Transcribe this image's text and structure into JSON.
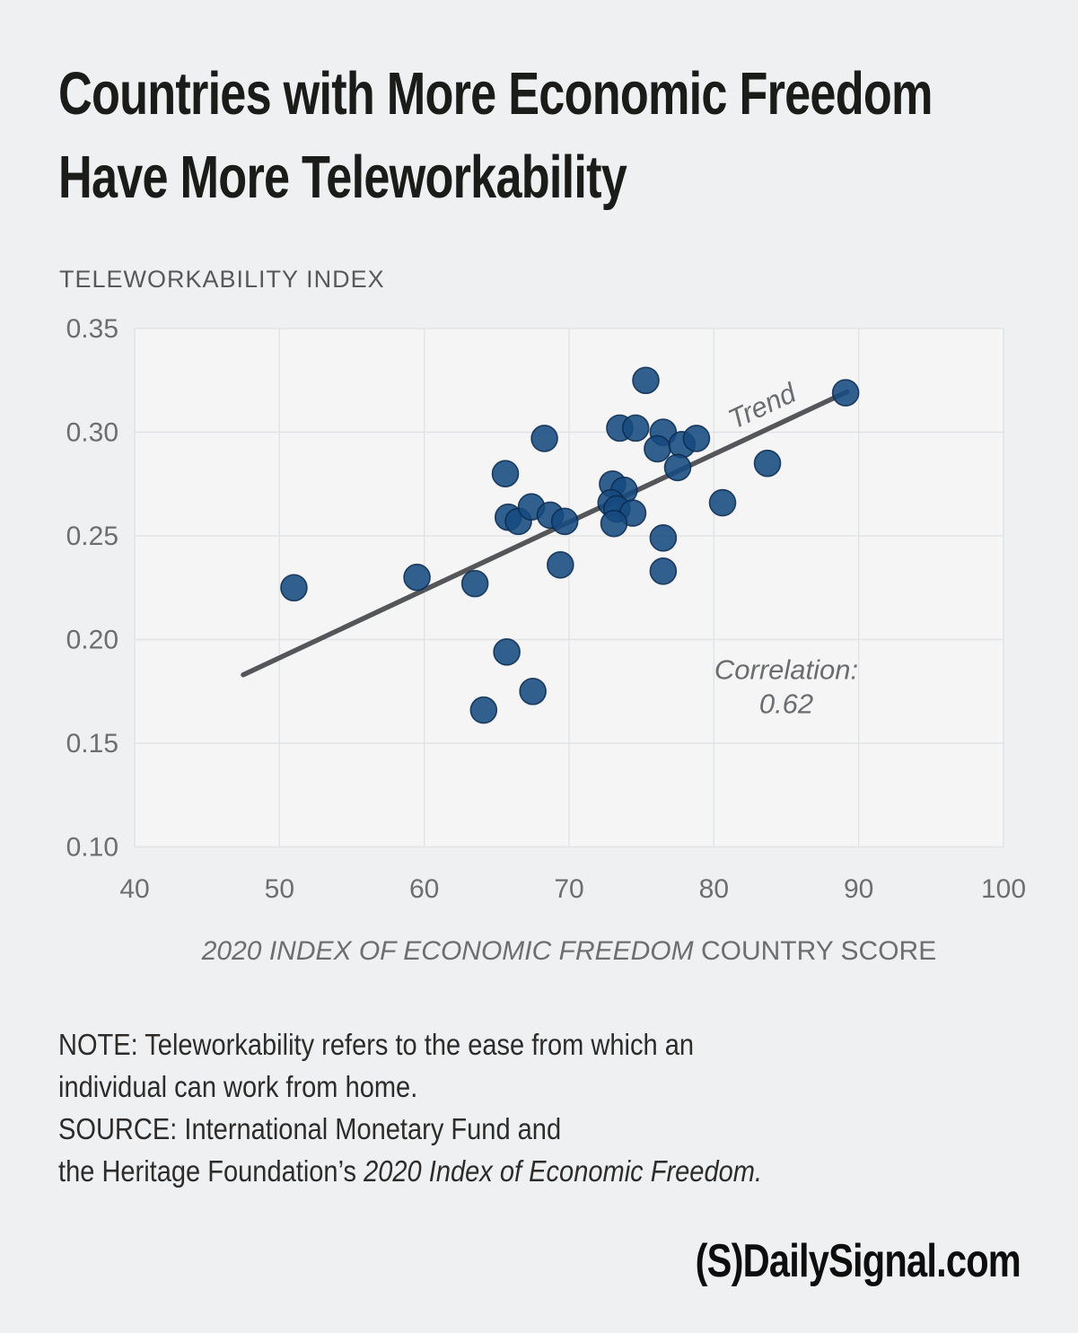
{
  "header": {
    "title_lines": [
      "Countries with More Economic Freedom",
      "Have More Teleworkability"
    ]
  },
  "chart_data": {
    "type": "scatter",
    "title": "Countries with More Economic Freedom Have More Teleworkability",
    "ylabel": "TELEWORKABILITY INDEX",
    "xlabel_italic": "2020 INDEX OF ECONOMIC FREEDOM",
    "xlabel_regular": "COUNTRY SCORE",
    "xlim": [
      40,
      100
    ],
    "ylim": [
      0.1,
      0.35
    ],
    "grid": true,
    "legend_position": "none",
    "xticks": [
      {
        "value": 40,
        "label": "40"
      },
      {
        "value": 50,
        "label": "50"
      },
      {
        "value": 60,
        "label": "60"
      },
      {
        "value": 70,
        "label": "70"
      },
      {
        "value": 80,
        "label": "80"
      },
      {
        "value": 90,
        "label": "90"
      },
      {
        "value": 100,
        "label": "100"
      }
    ],
    "yticks": [
      {
        "value": 0.35,
        "label": "0.35"
      },
      {
        "value": 0.3,
        "label": "0.30"
      },
      {
        "value": 0.25,
        "label": "0.25"
      },
      {
        "value": 0.2,
        "label": "0.20"
      },
      {
        "value": 0.15,
        "label": "0.15"
      },
      {
        "value": 0.1,
        "label": "0.10"
      }
    ],
    "points": [
      [
        51.0,
        0.225
      ],
      [
        59.5,
        0.23
      ],
      [
        63.5,
        0.227
      ],
      [
        69.4,
        0.236
      ],
      [
        65.7,
        0.194
      ],
      [
        67.5,
        0.175
      ],
      [
        64.1,
        0.166
      ],
      [
        65.6,
        0.28
      ],
      [
        68.3,
        0.297
      ],
      [
        65.8,
        0.259
      ],
      [
        66.5,
        0.257
      ],
      [
        67.4,
        0.264
      ],
      [
        68.7,
        0.26
      ],
      [
        69.7,
        0.257
      ],
      [
        73.0,
        0.275
      ],
      [
        73.8,
        0.272
      ],
      [
        72.9,
        0.266
      ],
      [
        73.3,
        0.263
      ],
      [
        74.4,
        0.261
      ],
      [
        73.1,
        0.256
      ],
      [
        76.5,
        0.249
      ],
      [
        76.5,
        0.233
      ],
      [
        73.5,
        0.302
      ],
      [
        74.6,
        0.302
      ],
      [
        75.3,
        0.325
      ],
      [
        76.5,
        0.3
      ],
      [
        76.1,
        0.292
      ],
      [
        77.8,
        0.294
      ],
      [
        78.8,
        0.297
      ],
      [
        77.5,
        0.283
      ],
      [
        80.6,
        0.266
      ],
      [
        83.7,
        0.285
      ],
      [
        89.1,
        0.319
      ]
    ],
    "trend": {
      "label": "Trend",
      "x1": 47.5,
      "y1": 0.183,
      "x2": 89.2,
      "y2": 0.3195
    },
    "annotation": {
      "lines": [
        "Correlation:",
        "0.62"
      ],
      "x": 85.0,
      "y": 0.181
    },
    "point_color": "#164a80",
    "point_stroke": "#0b2a4e",
    "trend_color": "#55565a",
    "label_color": "#6b6c6f",
    "tick_color": "#6d6e70",
    "plot_bg": "#f5f5f6",
    "grid_color": "#e2e3e5"
  },
  "footer": {
    "note_lines": [
      "NOTE: Teleworkability refers to the ease from which an",
      "individual can work from home."
    ],
    "source_line1": "SOURCE: International Monetary Fund and",
    "source_line2_regular": "the Heritage Foundation’s ",
    "source_line2_italic": "2020 Index of Economic Freedom.",
    "logo": "(S)DailySignal.com"
  }
}
